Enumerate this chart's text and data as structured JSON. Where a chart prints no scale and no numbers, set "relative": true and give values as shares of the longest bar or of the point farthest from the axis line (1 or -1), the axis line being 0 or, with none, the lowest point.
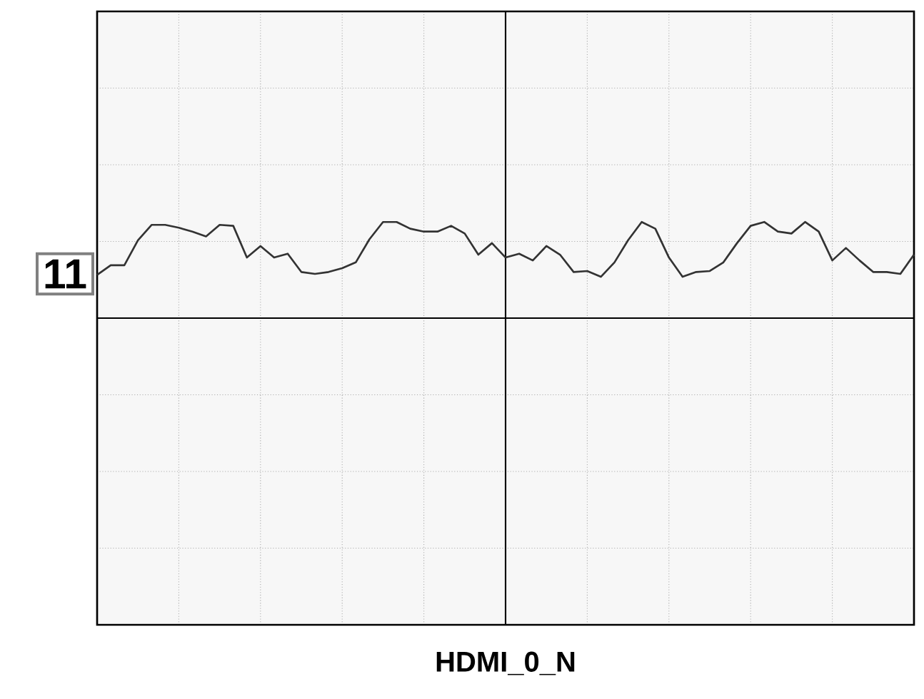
{
  "chart_data": {
    "type": "line",
    "title": "HDMI_0_N",
    "relative": true,
    "grid": true,
    "color": "#333333",
    "annotations": [
      "11"
    ],
    "categories": [
      null,
      null,
      null,
      null,
      null,
      null,
      null,
      null,
      null,
      null,
      null,
      null,
      null,
      null,
      null,
      null,
      null,
      null,
      null,
      null,
      null,
      null,
      null,
      null,
      null,
      null,
      null,
      null,
      null,
      null,
      null,
      null,
      null,
      null,
      null,
      null,
      null,
      null,
      null,
      null,
      null,
      null,
      null,
      null,
      null,
      null,
      null,
      null,
      null,
      null,
      null,
      null,
      null,
      null,
      null,
      null,
      null,
      null,
      null,
      null,
      null
    ],
    "values": [
      0.45,
      0.55,
      0.55,
      0.81,
      0.97,
      0.97,
      0.94,
      0.9,
      0.85,
      0.97,
      0.96,
      0.63,
      0.75,
      0.63,
      0.67,
      0.48,
      0.46,
      0.48,
      0.52,
      0.58,
      0.82,
      1,
      1,
      0.93,
      0.9,
      0.9,
      0.96,
      0.88,
      0.66,
      0.78,
      0.63,
      0.67,
      0.6,
      0.75,
      0.66,
      0.48,
      0.49,
      0.43,
      0.58,
      0.81,
      1,
      0.93,
      0.63,
      0.43,
      0.48,
      0.49,
      0.58,
      0.78,
      0.96,
      1,
      0.9,
      0.88,
      1,
      0.9,
      0.6,
      0.73,
      0.6,
      0.48,
      0.48,
      0.46,
      0.66
    ]
  }
}
